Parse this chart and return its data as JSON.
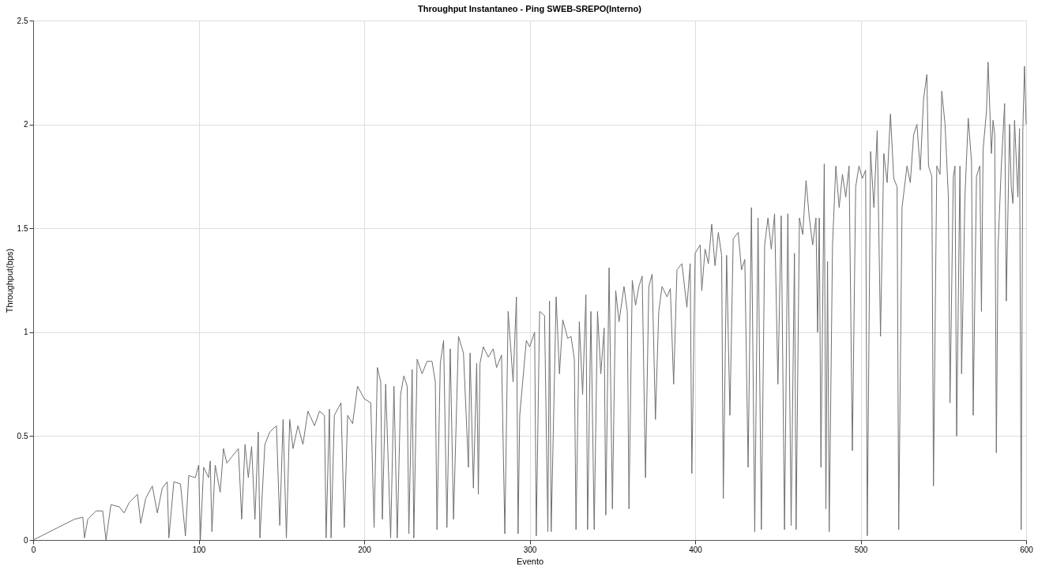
{
  "chart_data": {
    "type": "line",
    "title": "Throughput Instantaneo - Ping SWEB-SREPO(Interno)",
    "xlabel": "Evento",
    "ylabel": "Throughput(bps)",
    "xlim": [
      0,
      600
    ],
    "xticks": [
      0,
      100,
      200,
      300,
      400,
      500,
      600
    ],
    "ylim": [
      0,
      2.5
    ],
    "yticks": [
      0,
      0.5,
      1,
      1.5,
      2,
      2.5
    ],
    "grid": true,
    "legend": false,
    "marker": "none",
    "line_style": "solid",
    "series": [
      {
        "color": "#707070",
        "x": [
          0,
          5,
          10,
          15,
          20,
          25,
          30,
          31,
          33,
          38,
          42,
          44,
          47,
          52,
          55,
          58,
          63,
          65,
          68,
          72,
          75,
          78,
          81,
          82,
          85,
          89,
          92,
          94,
          98,
          100,
          101,
          103,
          106,
          107,
          108,
          110,
          113,
          115,
          117,
          120,
          124,
          126,
          128,
          130,
          132,
          134,
          136,
          137,
          140,
          143,
          147,
          149,
          151,
          153,
          155,
          157,
          160,
          163,
          166,
          170,
          173,
          176,
          177,
          179,
          180,
          182,
          186,
          188,
          190,
          193,
          196,
          200,
          204,
          206,
          208,
          210,
          211,
          213,
          216,
          218,
          220,
          222,
          224,
          226,
          227,
          229,
          230,
          232,
          235,
          238,
          241,
          243,
          244,
          246,
          248,
          250,
          252,
          254,
          257,
          260,
          263,
          264,
          266,
          268,
          269,
          270,
          272,
          275,
          278,
          280,
          283,
          285,
          287,
          290,
          292,
          293,
          294,
          298,
          300,
          303,
          304,
          306,
          309,
          311,
          312,
          313,
          316,
          318,
          320,
          323,
          325,
          327,
          328,
          330,
          332,
          334,
          335,
          337,
          339,
          341,
          343,
          345,
          346,
          348,
          350,
          352,
          354,
          357,
          359,
          360,
          362,
          364,
          366,
          368,
          370,
          372,
          374,
          376,
          378,
          380,
          383,
          385,
          387,
          389,
          392,
          395,
          397,
          398,
          400,
          403,
          404,
          406,
          408,
          410,
          412,
          414,
          416,
          417,
          419,
          421,
          423,
          426,
          428,
          430,
          432,
          434,
          436,
          438,
          440,
          442,
          444,
          446,
          448,
          450,
          452,
          454,
          456,
          458,
          460,
          461,
          463,
          465,
          467,
          469,
          471,
          473,
          474,
          475,
          476,
          478,
          479,
          480,
          481,
          483,
          485,
          487,
          489,
          491,
          493,
          495,
          497,
          499,
          501,
          503,
          504,
          506,
          508,
          510,
          512,
          514,
          516,
          518,
          520,
          522,
          523,
          525,
          528,
          530,
          532,
          534,
          536,
          538,
          540,
          541,
          543,
          544,
          546,
          548,
          549,
          551,
          553,
          554,
          556,
          557,
          558,
          560,
          561,
          563,
          565,
          567,
          568,
          570,
          572,
          573,
          574,
          576,
          577,
          579,
          580,
          581,
          582,
          583,
          585,
          587,
          588,
          590,
          591,
          592,
          593,
          595,
          596,
          597,
          598,
          599,
          600
        ],
        "values": [
          0,
          0.02,
          0.04,
          0.06,
          0.08,
          0.1,
          0.11,
          0.01,
          0.1,
          0.14,
          0.14,
          0.0,
          0.17,
          0.16,
          0.13,
          0.18,
          0.22,
          0.08,
          0.2,
          0.26,
          0.13,
          0.25,
          0.28,
          0.01,
          0.28,
          0.27,
          0.02,
          0.31,
          0.3,
          0.36,
          0.0,
          0.35,
          0.3,
          0.38,
          0.04,
          0.36,
          0.23,
          0.44,
          0.37,
          0.4,
          0.44,
          0.1,
          0.46,
          0.3,
          0.45,
          0.1,
          0.52,
          0.01,
          0.46,
          0.52,
          0.55,
          0.07,
          0.58,
          0.01,
          0.58,
          0.44,
          0.55,
          0.46,
          0.62,
          0.55,
          0.62,
          0.6,
          0.01,
          0.63,
          0.01,
          0.6,
          0.66,
          0.06,
          0.6,
          0.56,
          0.74,
          0.68,
          0.66,
          0.06,
          0.83,
          0.76,
          0.1,
          0.75,
          0.01,
          0.74,
          0.01,
          0.7,
          0.79,
          0.74,
          0.03,
          0.82,
          0.01,
          0.87,
          0.8,
          0.86,
          0.86,
          0.76,
          0.05,
          0.85,
          0.96,
          0.06,
          0.92,
          0.1,
          0.98,
          0.9,
          0.35,
          0.9,
          0.25,
          0.85,
          0.22,
          0.85,
          0.93,
          0.88,
          0.92,
          0.83,
          0.89,
          0.03,
          1.1,
          0.76,
          1.17,
          0.03,
          0.6,
          0.96,
          0.93,
          1.0,
          0.02,
          1.1,
          1.08,
          0.04,
          1.15,
          0.04,
          1.17,
          0.8,
          1.06,
          0.97,
          0.98,
          0.87,
          0.05,
          1.05,
          0.7,
          1.18,
          0.05,
          1.1,
          0.05,
          1.1,
          0.8,
          1.02,
          0.12,
          1.31,
          0.15,
          1.2,
          1.05,
          1.22,
          1.1,
          0.15,
          1.25,
          1.13,
          1.22,
          1.27,
          0.3,
          1.22,
          1.28,
          0.58,
          1.1,
          1.22,
          1.17,
          1.21,
          0.75,
          1.3,
          1.33,
          1.12,
          1.33,
          0.32,
          1.38,
          1.42,
          1.2,
          1.4,
          1.33,
          1.52,
          1.32,
          1.48,
          1.37,
          0.2,
          1.37,
          0.6,
          1.45,
          1.48,
          1.3,
          1.35,
          0.35,
          1.6,
          0.04,
          1.55,
          0.05,
          1.42,
          1.55,
          1.4,
          1.57,
          0.75,
          1.56,
          0.05,
          1.57,
          0.07,
          1.38,
          0.05,
          1.55,
          1.47,
          1.73,
          1.55,
          1.42,
          1.55,
          1.0,
          1.55,
          0.35,
          1.81,
          0.15,
          1.34,
          0.04,
          1.42,
          1.8,
          1.6,
          1.76,
          1.65,
          1.8,
          0.43,
          1.7,
          1.8,
          1.74,
          1.78,
          0.02,
          1.87,
          1.6,
          1.97,
          0.98,
          1.86,
          1.72,
          2.05,
          1.74,
          1.7,
          0.05,
          1.6,
          1.8,
          1.72,
          1.95,
          2.0,
          1.78,
          2.12,
          2.24,
          1.8,
          1.75,
          0.26,
          1.8,
          1.76,
          2.16,
          2.0,
          1.65,
          0.66,
          1.75,
          1.8,
          0.5,
          1.8,
          0.8,
          1.65,
          2.03,
          1.82,
          0.6,
          1.75,
          1.8,
          1.1,
          1.88,
          2.06,
          2.3,
          1.86,
          2.02,
          1.95,
          0.42,
          1.4,
          1.8,
          2.1,
          1.15,
          2.0,
          1.7,
          1.62,
          2.02,
          1.65,
          1.98,
          0.05,
          1.97,
          2.28,
          2.0
        ]
      }
    ]
  }
}
